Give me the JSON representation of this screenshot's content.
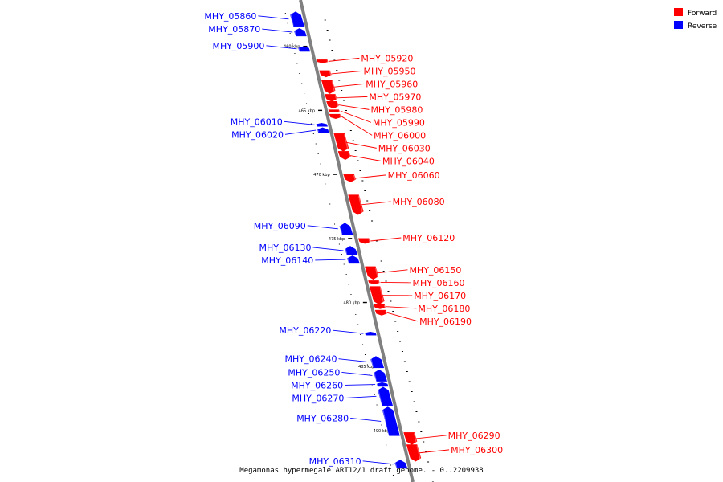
{
  "caption": "Megamonas hypermegale ART12/1 draft genome. - 0..2209938",
  "colors": {
    "forward": "#ff0000",
    "reverse": "#0000ff",
    "axis": "#808080"
  },
  "legend": {
    "forward": "Forward",
    "reverse": "Reverse"
  },
  "axis": {
    "kbp_start": 457.0,
    "kbp_end": 492.5
  },
  "ticks": [
    {
      "label": "460 kbp",
      "kbp": 460
    },
    {
      "label": "465 kbp",
      "kbp": 465
    },
    {
      "label": "470 kbp",
      "kbp": 470
    },
    {
      "label": "475 kbp",
      "kbp": 475
    },
    {
      "label": "480 kbp",
      "kbp": 480
    },
    {
      "label": "485 kbp",
      "kbp": 485
    },
    {
      "label": "490 kbp",
      "kbp": 490
    }
  ],
  "genes": [
    {
      "name": "MHY_05860",
      "strand": "reverse",
      "start_kbp": 457.3,
      "end_kbp": 458.45
    },
    {
      "name": "MHY_05870",
      "strand": "reverse",
      "start_kbp": 458.6,
      "end_kbp": 459.2
    },
    {
      "name": "MHY_05900",
      "strand": "reverse",
      "start_kbp": 460.0,
      "end_kbp": 460.4
    },
    {
      "name": "MHY_05920",
      "strand": "forward",
      "start_kbp": 461.05,
      "end_kbp": 461.3
    },
    {
      "name": "MHY_05950",
      "strand": "forward",
      "start_kbp": 461.9,
      "end_kbp": 462.4
    },
    {
      "name": "MHY_05960",
      "strand": "forward",
      "start_kbp": 462.65,
      "end_kbp": 463.7
    },
    {
      "name": "MHY_05970",
      "strand": "forward",
      "start_kbp": 463.75,
      "end_kbp": 464.3
    },
    {
      "name": "MHY_05980",
      "strand": "forward",
      "start_kbp": 464.3,
      "end_kbp": 464.85
    },
    {
      "name": "MHY_05990",
      "strand": "forward",
      "start_kbp": 464.95,
      "end_kbp": 465.15
    },
    {
      "name": "MHY_06000",
      "strand": "forward",
      "start_kbp": 465.3,
      "end_kbp": 465.65
    },
    {
      "name": "MHY_06010",
      "strand": "reverse",
      "start_kbp": 466.0,
      "end_kbp": 466.25
    },
    {
      "name": "MHY_06020",
      "strand": "reverse",
      "start_kbp": 466.35,
      "end_kbp": 466.75
    },
    {
      "name": "MHY_06030",
      "strand": "forward",
      "start_kbp": 466.8,
      "end_kbp": 468.2
    },
    {
      "name": "MHY_06040",
      "strand": "forward",
      "start_kbp": 468.2,
      "end_kbp": 468.85
    },
    {
      "name": "MHY_06060",
      "strand": "forward",
      "start_kbp": 470.0,
      "end_kbp": 470.6
    },
    {
      "name": "MHY_06080",
      "strand": "forward",
      "start_kbp": 471.6,
      "end_kbp": 473.15
    },
    {
      "name": "MHY_06090",
      "strand": "reverse",
      "start_kbp": 473.8,
      "end_kbp": 474.7
    },
    {
      "name": "MHY_06120",
      "strand": "forward",
      "start_kbp": 475.0,
      "end_kbp": 475.4
    },
    {
      "name": "MHY_06130",
      "strand": "reverse",
      "start_kbp": 475.6,
      "end_kbp": 476.3
    },
    {
      "name": "MHY_06140",
      "strand": "reverse",
      "start_kbp": 476.35,
      "end_kbp": 476.95
    },
    {
      "name": "MHY_06150",
      "strand": "forward",
      "start_kbp": 477.2,
      "end_kbp": 478.2
    },
    {
      "name": "MHY_06160",
      "strand": "forward",
      "start_kbp": 478.3,
      "end_kbp": 478.55
    },
    {
      "name": "MHY_06170",
      "strand": "forward",
      "start_kbp": 478.75,
      "end_kbp": 480.15
    },
    {
      "name": "MHY_06180",
      "strand": "forward",
      "start_kbp": 480.15,
      "end_kbp": 480.5
    },
    {
      "name": "MHY_06190",
      "strand": "forward",
      "start_kbp": 480.6,
      "end_kbp": 481.0
    },
    {
      "name": "MHY_06220",
      "strand": "reverse",
      "start_kbp": 482.3,
      "end_kbp": 482.55
    },
    {
      "name": "MHY_06240",
      "strand": "reverse",
      "start_kbp": 484.2,
      "end_kbp": 485.1
    },
    {
      "name": "MHY_06250",
      "strand": "reverse",
      "start_kbp": 485.25,
      "end_kbp": 486.15
    },
    {
      "name": "MHY_06260",
      "strand": "reverse",
      "start_kbp": 486.25,
      "end_kbp": 486.55
    },
    {
      "name": "MHY_06270",
      "strand": "reverse",
      "start_kbp": 486.6,
      "end_kbp": 488.05
    },
    {
      "name": "MHY_06280",
      "strand": "reverse",
      "start_kbp": 488.15,
      "end_kbp": 490.4
    },
    {
      "name": "MHY_06290",
      "strand": "forward",
      "start_kbp": 490.15,
      "end_kbp": 491.1
    },
    {
      "name": "MHY_06300",
      "strand": "forward",
      "start_kbp": 491.1,
      "end_kbp": 492.4
    },
    {
      "name": "MHY_06310",
      "strand": "reverse",
      "start_kbp": 492.3,
      "end_kbp": 492.95
    }
  ]
}
